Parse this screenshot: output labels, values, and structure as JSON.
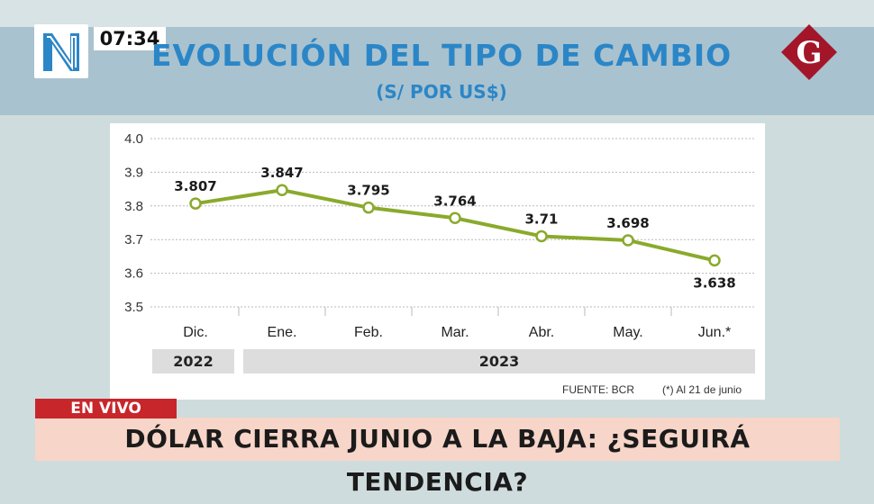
{
  "broadcast": {
    "clock": "07:34",
    "live_label": "EN VIVO",
    "headline": "DÓLAR CIERRA JUNIO A LA BAJA: ¿SEGUIRÁ TENDENCIA?"
  },
  "colors": {
    "title": "#2b86c7",
    "series": "#8aaa2c",
    "live_badge": "#c7262b",
    "headline_bg": "#f7d5c8",
    "logo_g": "#a3162a"
  },
  "icons": {
    "channel_logo": "n-logo-icon",
    "station_logo": "g-logo-icon"
  },
  "chart_data": {
    "type": "line",
    "title": "EVOLUCIÓN DEL TIPO DE CAMBIO",
    "subtitle": "(S/ POR US$)",
    "categories": [
      "Dic.",
      "Ene.",
      "Feb.",
      "Mar.",
      "Abr.",
      "May.",
      "Jun.*"
    ],
    "values": [
      3.807,
      3.847,
      3.795,
      3.764,
      3.71,
      3.698,
      3.638
    ],
    "value_labels": [
      "3.807",
      "3.847",
      "3.795",
      "3.764",
      "3.71",
      "3.698",
      "3.638"
    ],
    "ylim": [
      3.5,
      4.0
    ],
    "yticks": [
      "3.5",
      "3.6",
      "3.7",
      "3.8",
      "3.9",
      "4.0"
    ],
    "grid": true,
    "year_groups": [
      {
        "label": "2022",
        "span": 1
      },
      {
        "label": "2023",
        "span": 6
      }
    ],
    "source": "FUENTE: BCR",
    "note": "(*) Al 21 de junio"
  }
}
